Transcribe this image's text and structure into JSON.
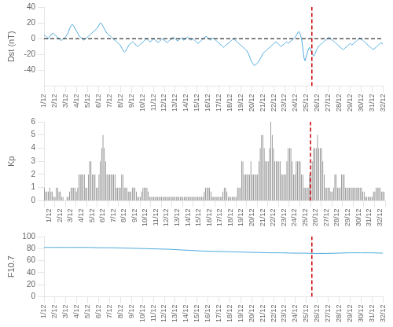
{
  "chart_data": [
    {
      "type": "line",
      "y_label": "Dst (nT)",
      "color": "#4DAADC",
      "grid": false,
      "xlim": [
        0,
        31
      ],
      "xticks": [
        {
          "value": 0,
          "label": "1/12"
        },
        {
          "value": 1,
          "label": "2/12"
        },
        {
          "value": 2,
          "label": "3/12"
        },
        {
          "value": 3,
          "label": "4/12"
        },
        {
          "value": 4,
          "label": "5/12"
        },
        {
          "value": 5,
          "label": "6/12"
        },
        {
          "value": 6,
          "label": "7/12"
        },
        {
          "value": 7,
          "label": "8/12"
        },
        {
          "value": 8,
          "label": "9/12"
        },
        {
          "value": 9,
          "label": "10/12"
        },
        {
          "value": 10,
          "label": "11/12"
        },
        {
          "value": 11,
          "label": "12/12"
        },
        {
          "value": 12,
          "label": "13/12"
        },
        {
          "value": 13,
          "label": "14/12"
        },
        {
          "value": 14,
          "label": "15/12"
        },
        {
          "value": 15,
          "label": "16/12"
        },
        {
          "value": 16,
          "label": "17/12"
        },
        {
          "value": 17,
          "label": "18/12"
        },
        {
          "value": 18,
          "label": "19/12"
        },
        {
          "value": 19,
          "label": "20/12"
        },
        {
          "value": 20,
          "label": "21/12"
        },
        {
          "value": 21,
          "label": "22/12"
        },
        {
          "value": 22,
          "label": "23/12"
        },
        {
          "value": 23,
          "label": "24/12"
        },
        {
          "value": 24,
          "label": "25/12"
        },
        {
          "value": 25,
          "label": "26/12"
        },
        {
          "value": 26,
          "label": "27/12"
        },
        {
          "value": 27,
          "label": "28/12"
        },
        {
          "value": 28,
          "label": "29/12"
        },
        {
          "value": 29,
          "label": "30/12"
        },
        {
          "value": 30,
          "label": "31/12"
        },
        {
          "value": 31,
          "label": "32/12"
        }
      ],
      "ylim": [
        -60,
        40
      ],
      "yticks": [
        -40,
        -20,
        0,
        20,
        40
      ],
      "hlines": [
        {
          "y": 0,
          "color": "black",
          "line_style": "dashed"
        }
      ],
      "vlines": [
        {
          "x": 24.5,
          "color": "#CC0000",
          "line_style": "dashed"
        }
      ],
      "values": [
        5,
        4,
        3,
        2,
        1,
        0,
        2,
        4,
        5,
        6,
        7,
        6,
        5,
        4,
        3,
        2,
        1,
        0,
        -1,
        -2,
        -2,
        -1,
        0,
        1,
        2,
        3,
        5,
        7,
        10,
        13,
        15,
        17,
        18,
        17,
        15,
        13,
        11,
        9,
        7,
        5,
        3,
        2,
        1,
        0,
        -1,
        -2,
        -1,
        0,
        1,
        2,
        3,
        4,
        5,
        6,
        7,
        8,
        9,
        10,
        11,
        12,
        13,
        15,
        17,
        19,
        20,
        19,
        17,
        15,
        13,
        11,
        9,
        7,
        6,
        5,
        4,
        3,
        2,
        1,
        0,
        -1,
        -2,
        -3,
        -4,
        -5,
        -6,
        -7,
        -8,
        -10,
        -12,
        -14,
        -16,
        -17,
        -16,
        -14,
        -12,
        -10,
        -8,
        -7,
        -6,
        -5,
        -4,
        -5,
        -6,
        -7,
        -8,
        -9,
        -10,
        -9,
        -8,
        -7,
        -6,
        -5,
        -4,
        -3,
        -2,
        -1,
        0,
        -1,
        -2,
        -3,
        -4,
        -3,
        -2,
        -1,
        0,
        -1,
        -2,
        -3,
        -4,
        -5,
        -4,
        -3,
        -2,
        -1,
        0,
        -1,
        -2,
        -3,
        -4,
        -5,
        -4,
        -3,
        -2,
        -1,
        0,
        1,
        2,
        1,
        0,
        -1,
        -2,
        -3,
        -2,
        -1,
        0,
        1,
        0,
        -1,
        -2,
        -1,
        0,
        1,
        2,
        1,
        0,
        -1,
        -2,
        -1,
        0,
        -1,
        -2,
        -3,
        -4,
        -5,
        -6,
        -5,
        -4,
        -3,
        -2,
        -1,
        0,
        1,
        2,
        3,
        2,
        1,
        0,
        -1,
        -2,
        -1,
        0,
        1,
        0,
        -1,
        -2,
        -3,
        -4,
        -5,
        -6,
        -7,
        -8,
        -9,
        -10,
        -11,
        -10,
        -9,
        -8,
        -7,
        -6,
        -5,
        -4,
        -3,
        -2,
        -1,
        0,
        -1,
        -2,
        -3,
        -4,
        -5,
        -6,
        -7,
        -8,
        -9,
        -10,
        -11,
        -12,
        -13,
        -14,
        -15,
        -17,
        -19,
        -22,
        -25,
        -28,
        -30,
        -32,
        -33,
        -34,
        -33,
        -32,
        -31,
        -30,
        -28,
        -26,
        -24,
        -22,
        -20,
        -18,
        -17,
        -16,
        -15,
        -14,
        -13,
        -12,
        -11,
        -10,
        -9,
        -8,
        -7,
        -6,
        -5,
        -4,
        -5,
        -6,
        -7,
        -8,
        -9,
        -10,
        -9,
        -8,
        -7,
        -6,
        -5,
        -4,
        -5,
        -6,
        -5,
        -4,
        -3,
        -2,
        -1,
        0,
        1,
        2,
        4,
        6,
        8,
        9,
        7,
        4,
        0,
        -8,
        -18,
        -25,
        -28,
        -24,
        -20,
        -16,
        -13,
        -11,
        -13,
        -16,
        -19,
        -21,
        -22,
        -20,
        -17,
        -14,
        -12,
        -10,
        -9,
        -8,
        -7,
        -6,
        -5,
        -4,
        -3,
        -2,
        -1,
        0,
        1,
        2,
        1,
        0,
        -1,
        -2,
        -3,
        -4,
        -5,
        -6,
        -7,
        -8,
        -9,
        -10,
        -11,
        -12,
        -13,
        -14,
        -13,
        -12,
        -11,
        -10,
        -9,
        -8,
        -7,
        -6,
        -7,
        -8,
        -7,
        -6,
        -5,
        -4,
        -3,
        -2,
        -1,
        0,
        1,
        0,
        -1,
        -2,
        -3,
        -4,
        -5,
        -6,
        -7,
        -8,
        -9,
        -10,
        -11,
        -12,
        -13,
        -14,
        -13,
        -12,
        -11,
        -10,
        -9,
        -8,
        -7,
        -6,
        -5,
        -6,
        -7
      ]
    },
    {
      "type": "bar",
      "y_label": "Kp",
      "color": "#808080",
      "grid": false,
      "xlim": [
        0,
        31
      ],
      "xticks": [
        {
          "value": 0,
          "label": "1/12"
        },
        {
          "value": 1,
          "label": "2/12"
        },
        {
          "value": 2,
          "label": "3/12"
        },
        {
          "value": 3,
          "label": "4/12"
        },
        {
          "value": 4,
          "label": "5/12"
        },
        {
          "value": 5,
          "label": "6/12"
        },
        {
          "value": 6,
          "label": "7/12"
        },
        {
          "value": 7,
          "label": "8/12"
        },
        {
          "value": 8,
          "label": "9/12"
        },
        {
          "value": 9,
          "label": "10/12"
        },
        {
          "value": 10,
          "label": "11/12"
        },
        {
          "value": 11,
          "label": "12/12"
        },
        {
          "value": 12,
          "label": "13/12"
        },
        {
          "value": 13,
          "label": "14/12"
        },
        {
          "value": 14,
          "label": "15/12"
        },
        {
          "value": 15,
          "label": "16/12"
        },
        {
          "value": 16,
          "label": "17/12"
        },
        {
          "value": 17,
          "label": "18/12"
        },
        {
          "value": 18,
          "label": "19/12"
        },
        {
          "value": 19,
          "label": "20/12"
        },
        {
          "value": 20,
          "label": "21/12"
        },
        {
          "value": 21,
          "label": "22/12"
        },
        {
          "value": 22,
          "label": "23/12"
        },
        {
          "value": 23,
          "label": "24/12"
        },
        {
          "value": 24,
          "label": "25/12"
        },
        {
          "value": 25,
          "label": "26/12"
        },
        {
          "value": 26,
          "label": "27/12"
        },
        {
          "value": 27,
          "label": "28/12"
        },
        {
          "value": 28,
          "label": "29/12"
        },
        {
          "value": 29,
          "label": "30/12"
        },
        {
          "value": 30,
          "label": "31/12"
        },
        {
          "value": 31,
          "label": "32/12"
        }
      ],
      "ylim": [
        0,
        6
      ],
      "yticks": [
        0,
        1,
        2,
        3,
        4,
        5,
        6
      ],
      "vlines": [
        {
          "x": 24.5,
          "color": "#CC0000",
          "line_style": "dashed"
        }
      ],
      "values": [
        1.0,
        0.7,
        0.7,
        0.7,
        1.0,
        0.7,
        0.7,
        0.3,
        0.3,
        1.0,
        1.0,
        0.7,
        0.7,
        0.3,
        0.3,
        0.0,
        0.0,
        0.3,
        0.3,
        0.7,
        1.0,
        1.0,
        1.0,
        1.0,
        0.7,
        1.0,
        2.0,
        2.0,
        2.0,
        2.0,
        2.0,
        1.0,
        1.0,
        2.0,
        3.0,
        3.0,
        2.0,
        2.0,
        2.0,
        1.0,
        1.0,
        2.0,
        3.0,
        4.0,
        5.0,
        4.0,
        3.0,
        2.0,
        2.0,
        2.0,
        2.0,
        2.0,
        2.0,
        2.0,
        1.0,
        1.0,
        1.0,
        1.0,
        2.0,
        2.0,
        1.0,
        1.0,
        1.0,
        0.7,
        0.7,
        0.7,
        1.0,
        1.0,
        1.0,
        0.7,
        0.3,
        0.3,
        0.3,
        0.7,
        1.0,
        1.0,
        1.0,
        1.0,
        0.7,
        0.3,
        0.3,
        0.3,
        0.3,
        0.3,
        0.3,
        0.3,
        0.3,
        0.3,
        0.3,
        0.3,
        0.3,
        0.3,
        0.3,
        0.3,
        0.3,
        0.3,
        0.3,
        0.3,
        0.3,
        0.3,
        0.3,
        0.3,
        0.3,
        0.3,
        0.3,
        0.3,
        0.3,
        0.3,
        0.3,
        0.3,
        0.3,
        0.3,
        0.3,
        0.3,
        0.3,
        0.3,
        0.3,
        0.3,
        0.3,
        0.3,
        0.7,
        1.0,
        1.0,
        1.0,
        1.0,
        0.7,
        0.3,
        0.3,
        0.3,
        0.3,
        0.3,
        0.3,
        0.3,
        0.3,
        0.7,
        1.0,
        1.0,
        0.7,
        0.3,
        0.3,
        0.3,
        0.3,
        0.3,
        0.3,
        0.3,
        1.0,
        1.0,
        1.0,
        3.0,
        3.0,
        2.0,
        2.0,
        2.0,
        2.0,
        2.0,
        3.0,
        2.0,
        2.0,
        2.0,
        2.0,
        2.0,
        3.0,
        4.0,
        5.0,
        5.0,
        4.0,
        3.0,
        3.0,
        3.0,
        4.0,
        6.0,
        5.0,
        4.0,
        3.0,
        3.0,
        3.0,
        3.0,
        3.0,
        2.0,
        2.0,
        2.0,
        2.0,
        3.0,
        4.0,
        4.0,
        4.0,
        3.0,
        2.0,
        2.0,
        3.0,
        3.0,
        3.0,
        3.0,
        2.0,
        2.0,
        1.0,
        1.0,
        1.0,
        1.0,
        2.0,
        2.0,
        3.0,
        4.0,
        4.0,
        4.0,
        5.0,
        4.0,
        4.0,
        4.0,
        3.0,
        2.0,
        1.0,
        1.0,
        1.0,
        1.0,
        0.7,
        0.7,
        1.0,
        2.0,
        2.0,
        1.0,
        1.0,
        1.0,
        2.0,
        2.0,
        2.0,
        1.0,
        1.0,
        1.0,
        1.0,
        1.0,
        1.0,
        1.0,
        1.0,
        1.0,
        1.0,
        1.0,
        1.0,
        1.0,
        0.7,
        0.7,
        0.3,
        0.3,
        0.3,
        0.3,
        0.3,
        0.3,
        0.7,
        0.7,
        1.0,
        1.0,
        1.0,
        1.0,
        0.7,
        0.7,
        0.7
      ]
    },
    {
      "type": "line",
      "y_label": "F10.7",
      "color": "#4DAADC",
      "grid": false,
      "xlim": [
        0,
        31
      ],
      "xticks": [
        {
          "value": 0,
          "label": "1/12"
        },
        {
          "value": 1,
          "label": "2/12"
        },
        {
          "value": 2,
          "label": "3/12"
        },
        {
          "value": 3,
          "label": "4/12"
        },
        {
          "value": 4,
          "label": "5/12"
        },
        {
          "value": 5,
          "label": "6/12"
        },
        {
          "value": 6,
          "label": "7/12"
        },
        {
          "value": 7,
          "label": "8/12"
        },
        {
          "value": 8,
          "label": "9/12"
        },
        {
          "value": 9,
          "label": "10/12"
        },
        {
          "value": 10,
          "label": "11/12"
        },
        {
          "value": 11,
          "label": "12/12"
        },
        {
          "value": 12,
          "label": "13/12"
        },
        {
          "value": 13,
          "label": "14/12"
        },
        {
          "value": 14,
          "label": "15/12"
        },
        {
          "value": 15,
          "label": "16/12"
        },
        {
          "value": 16,
          "label": "17/12"
        },
        {
          "value": 17,
          "label": "18/12"
        },
        {
          "value": 18,
          "label": "19/12"
        },
        {
          "value": 19,
          "label": "20/12"
        },
        {
          "value": 20,
          "label": "21/12"
        },
        {
          "value": 21,
          "label": "22/12"
        },
        {
          "value": 22,
          "label": "23/12"
        },
        {
          "value": 23,
          "label": "24/12"
        },
        {
          "value": 24,
          "label": "25/12"
        },
        {
          "value": 25,
          "label": "26/12"
        },
        {
          "value": 26,
          "label": "27/12"
        },
        {
          "value": 27,
          "label": "28/12"
        },
        {
          "value": 28,
          "label": "29/12"
        },
        {
          "value": 29,
          "label": "30/12"
        },
        {
          "value": 30,
          "label": "31/12"
        },
        {
          "value": 31,
          "label": "32/12"
        }
      ],
      "ylim": [
        0,
        100
      ],
      "yticks": [
        0,
        20,
        40,
        60,
        80,
        100
      ],
      "vlines": [
        {
          "x": 24.5,
          "color": "#CC0000",
          "line_style": "dashed"
        }
      ],
      "values": [
        82.0,
        82.0,
        82.0,
        82.0,
        82.0,
        81.5,
        81.5,
        81.0,
        80.5,
        80.0,
        79.5,
        79.0,
        78.0,
        77.0,
        76.0,
        75.5,
        75.0,
        74.5,
        74.0,
        73.5,
        73.0,
        73.0,
        72.5,
        72.5,
        72.0,
        72.0,
        72.5,
        73.0,
        73.0,
        73.0,
        72.5
      ]
    }
  ]
}
